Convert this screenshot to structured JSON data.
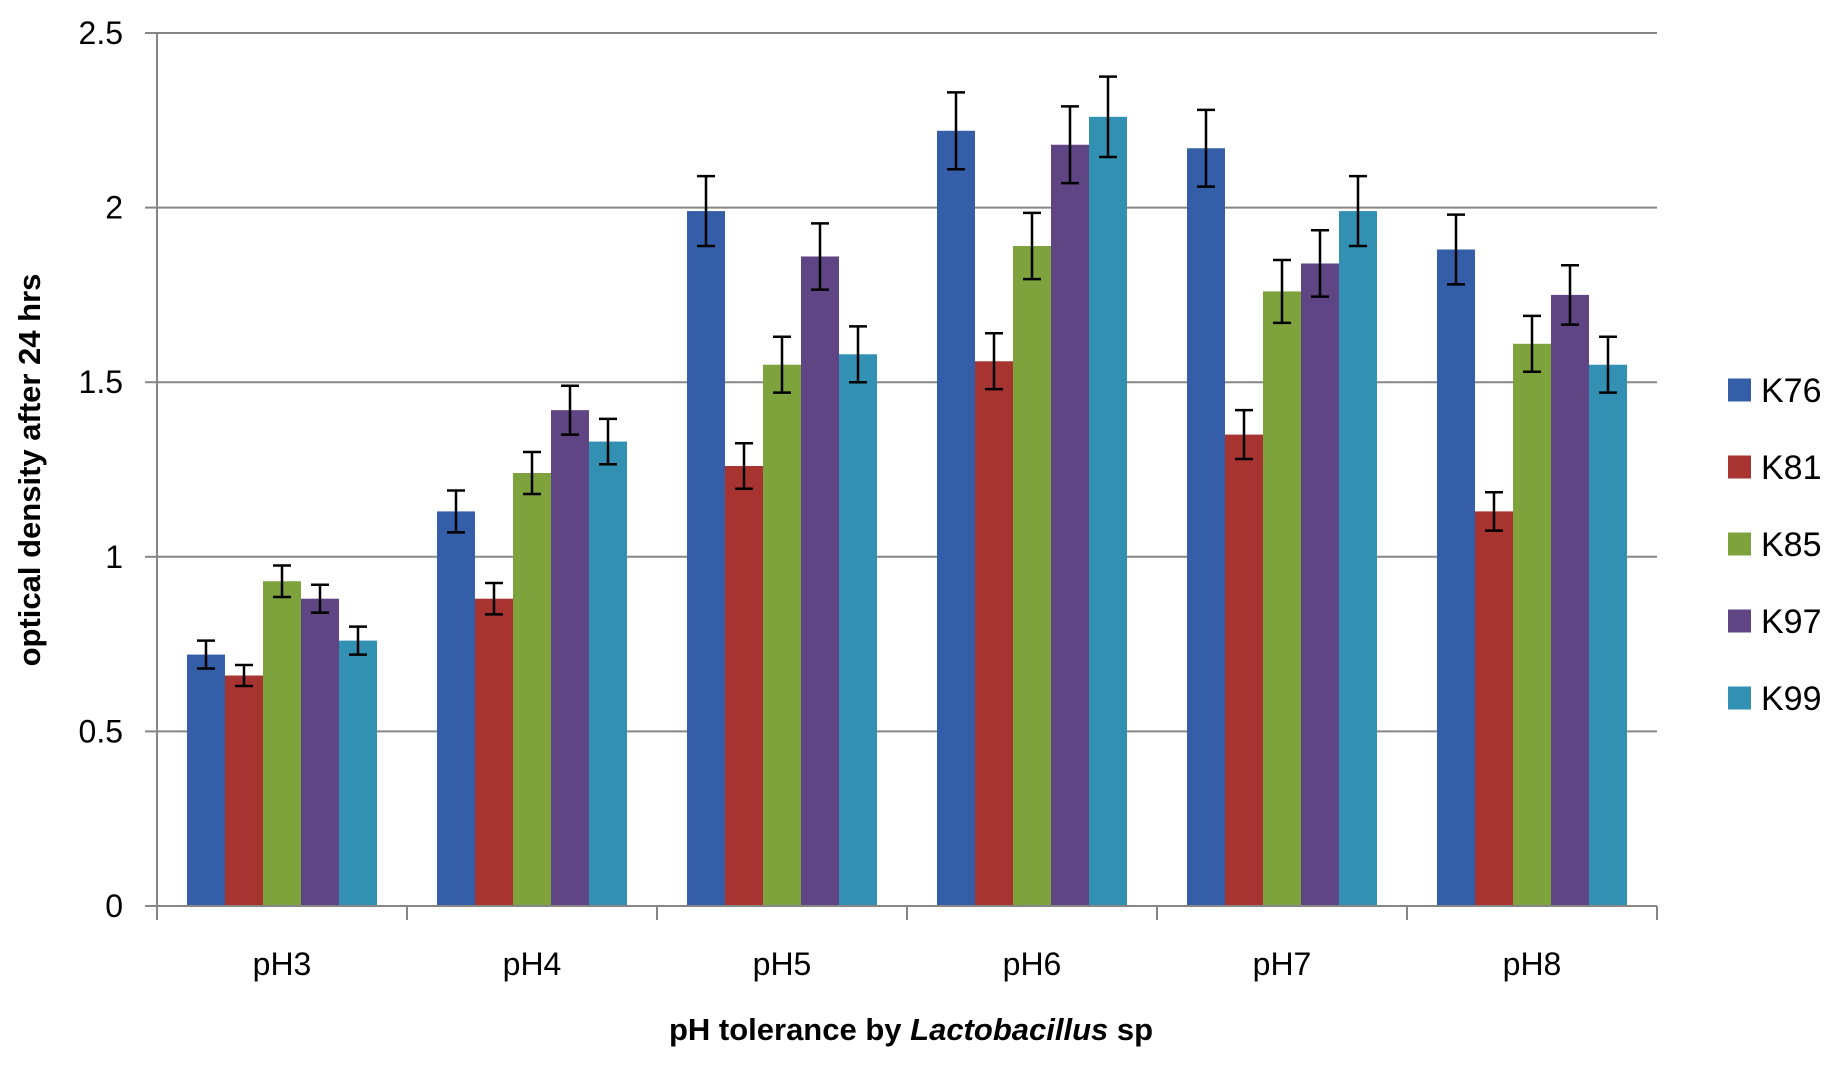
{
  "chart_data": {
    "type": "bar",
    "categories": [
      "pH3",
      "pH4",
      "pH5",
      "pH6",
      "pH7",
      "pH8"
    ],
    "series": [
      {
        "name": "K76",
        "color": "#355EA8",
        "values": [
          0.72,
          1.13,
          1.99,
          2.22,
          2.17,
          1.88
        ],
        "errors": [
          0.04,
          0.06,
          0.1,
          0.11,
          0.11,
          0.1
        ]
      },
      {
        "name": "K81",
        "color": "#A83431",
        "values": [
          0.66,
          0.88,
          1.26,
          1.56,
          1.35,
          1.13
        ],
        "errors": [
          0.03,
          0.045,
          0.065,
          0.08,
          0.07,
          0.055
        ]
      },
      {
        "name": "K85",
        "color": "#7EA33D",
        "values": [
          0.93,
          1.24,
          1.55,
          1.89,
          1.76,
          1.61
        ],
        "errors": [
          0.045,
          0.06,
          0.08,
          0.095,
          0.09,
          0.08
        ]
      },
      {
        "name": "K97",
        "color": "#5F4584",
        "values": [
          0.88,
          1.42,
          1.86,
          2.18,
          1.84,
          1.75
        ],
        "errors": [
          0.04,
          0.07,
          0.095,
          0.11,
          0.095,
          0.085
        ]
      },
      {
        "name": "K99",
        "color": "#3291B3",
        "values": [
          0.76,
          1.33,
          1.58,
          2.26,
          1.99,
          1.55
        ],
        "errors": [
          0.04,
          0.065,
          0.08,
          0.115,
          0.1,
          0.08
        ]
      }
    ],
    "ylim": [
      0,
      2.5
    ],
    "yticks": [
      "0",
      "0.5",
      "1",
      "1.5",
      "2",
      "2.5"
    ],
    "ylabel": "optical density after 24 hrs",
    "xlabel": {
      "prefix": "pH tolerance by ",
      "italic": "Lactobacillus",
      "suffix": " sp"
    },
    "grid": true,
    "legend": "right"
  }
}
